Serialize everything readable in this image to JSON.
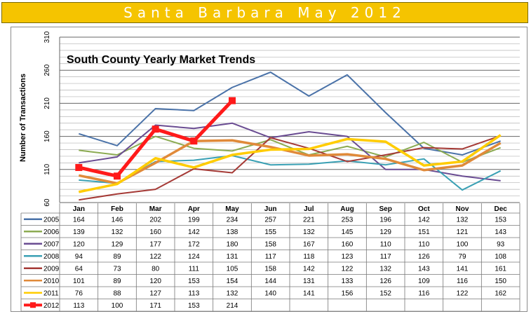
{
  "banner": {
    "title": "Santa Barbara May 2012"
  },
  "chart_data": {
    "type": "line",
    "title": "South County Yearly Market Trends",
    "ylabel": "Number of Transactions",
    "xlabel": "",
    "ylim": [
      60,
      310
    ],
    "yticks": [
      60,
      110,
      160,
      210,
      260,
      310
    ],
    "grid": true,
    "legend_placement": "table-below",
    "categories": [
      "Jan",
      "Feb",
      "Mar",
      "Apr",
      "May",
      "Jun",
      "Jul",
      "Aug",
      "Sep",
      "Oct",
      "Nov",
      "Dec"
    ],
    "series": [
      {
        "name": "2005",
        "color": "#4a72a8",
        "values": [
          164,
          146,
          202,
          199,
          234,
          257,
          221,
          253,
          196,
          142,
          132,
          153
        ]
      },
      {
        "name": "2006",
        "color": "#8cab52",
        "values": [
          139,
          132,
          160,
          142,
          138,
          155,
          132,
          145,
          129,
          151,
          121,
          143
        ]
      },
      {
        "name": "2007",
        "color": "#6a4c92",
        "values": [
          120,
          129,
          177,
          172,
          180,
          158,
          167,
          160,
          110,
          110,
          100,
          93
        ]
      },
      {
        "name": "2008",
        "color": "#3aa0b4",
        "values": [
          94,
          89,
          122,
          124,
          131,
          117,
          118,
          123,
          117,
          126,
          79,
          108
        ]
      },
      {
        "name": "2009",
        "color": "#a53a36",
        "values": [
          64,
          73,
          80,
          111,
          105,
          158,
          142,
          122,
          132,
          143,
          141,
          161
        ]
      },
      {
        "name": "2010",
        "color": "#e08a3a",
        "values": [
          101,
          89,
          120,
          153,
          154,
          144,
          131,
          133,
          126,
          109,
          116,
          150
        ]
      },
      {
        "name": "2011",
        "color": "#ffcc00",
        "values": [
          76,
          88,
          127,
          113,
          132,
          140,
          141,
          156,
          152,
          116,
          122,
          162
        ]
      },
      {
        "name": "2012",
        "color": "#ff1a1a",
        "values": [
          113,
          100,
          171,
          153,
          214,
          null,
          null,
          null,
          null,
          null,
          null,
          null
        ]
      }
    ]
  }
}
